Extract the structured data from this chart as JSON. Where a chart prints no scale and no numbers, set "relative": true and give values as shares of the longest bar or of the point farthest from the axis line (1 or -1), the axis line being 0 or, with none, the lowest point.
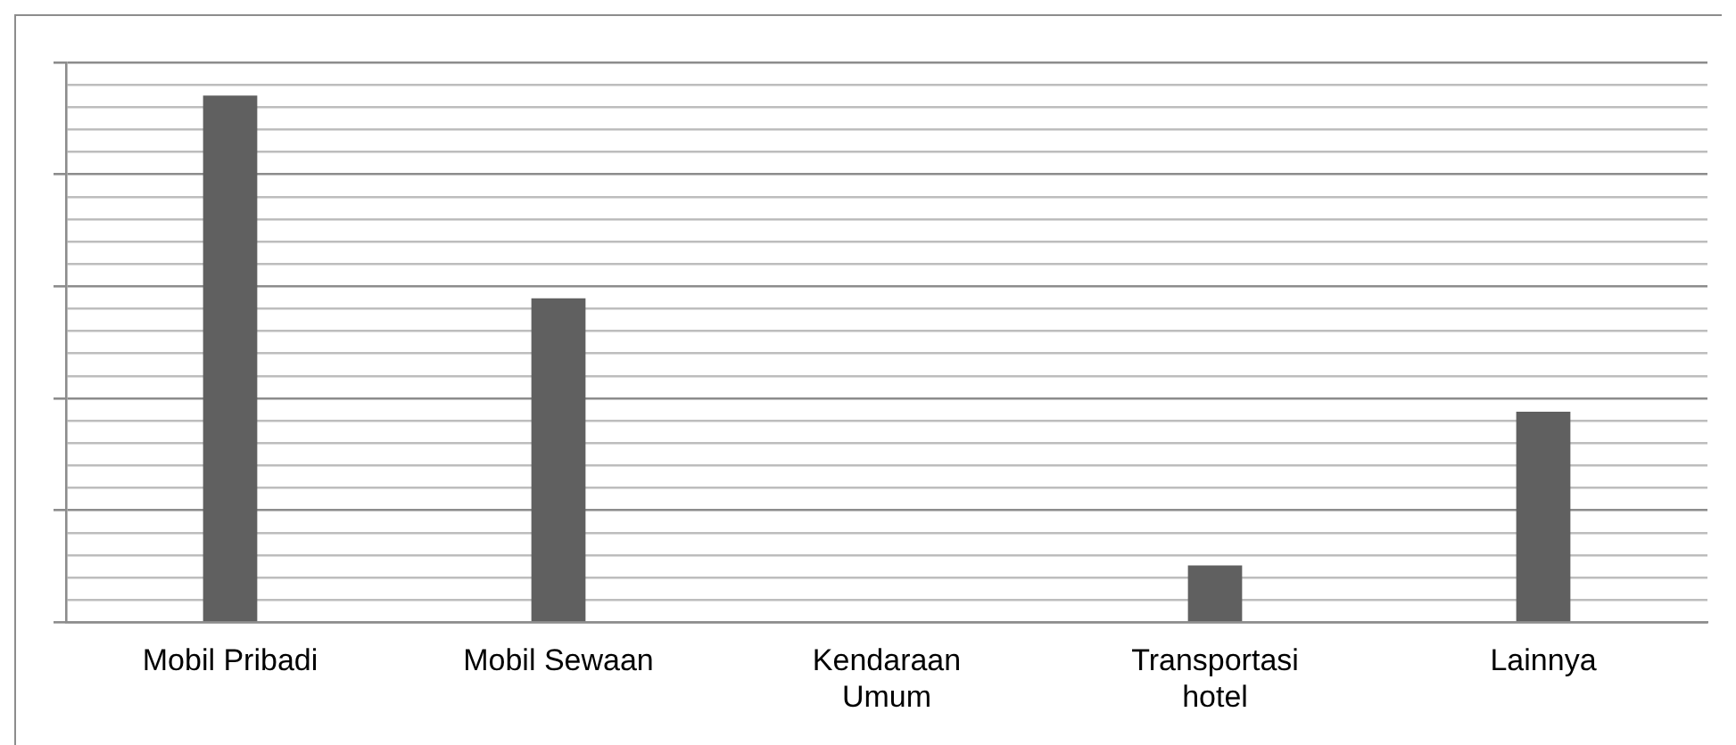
{
  "chart_data": {
    "type": "bar",
    "categories": [
      "Mobil Pribadi",
      "Mobil Sewaan",
      "Kendaraan Umum",
      "Transportasi hotel",
      "Lainnya"
    ],
    "values": [
      1,
      0.615,
      0,
      0.108,
      0.4
    ],
    "color": "#606060",
    "relative": true,
    "grid": "y",
    "legend": false
  }
}
